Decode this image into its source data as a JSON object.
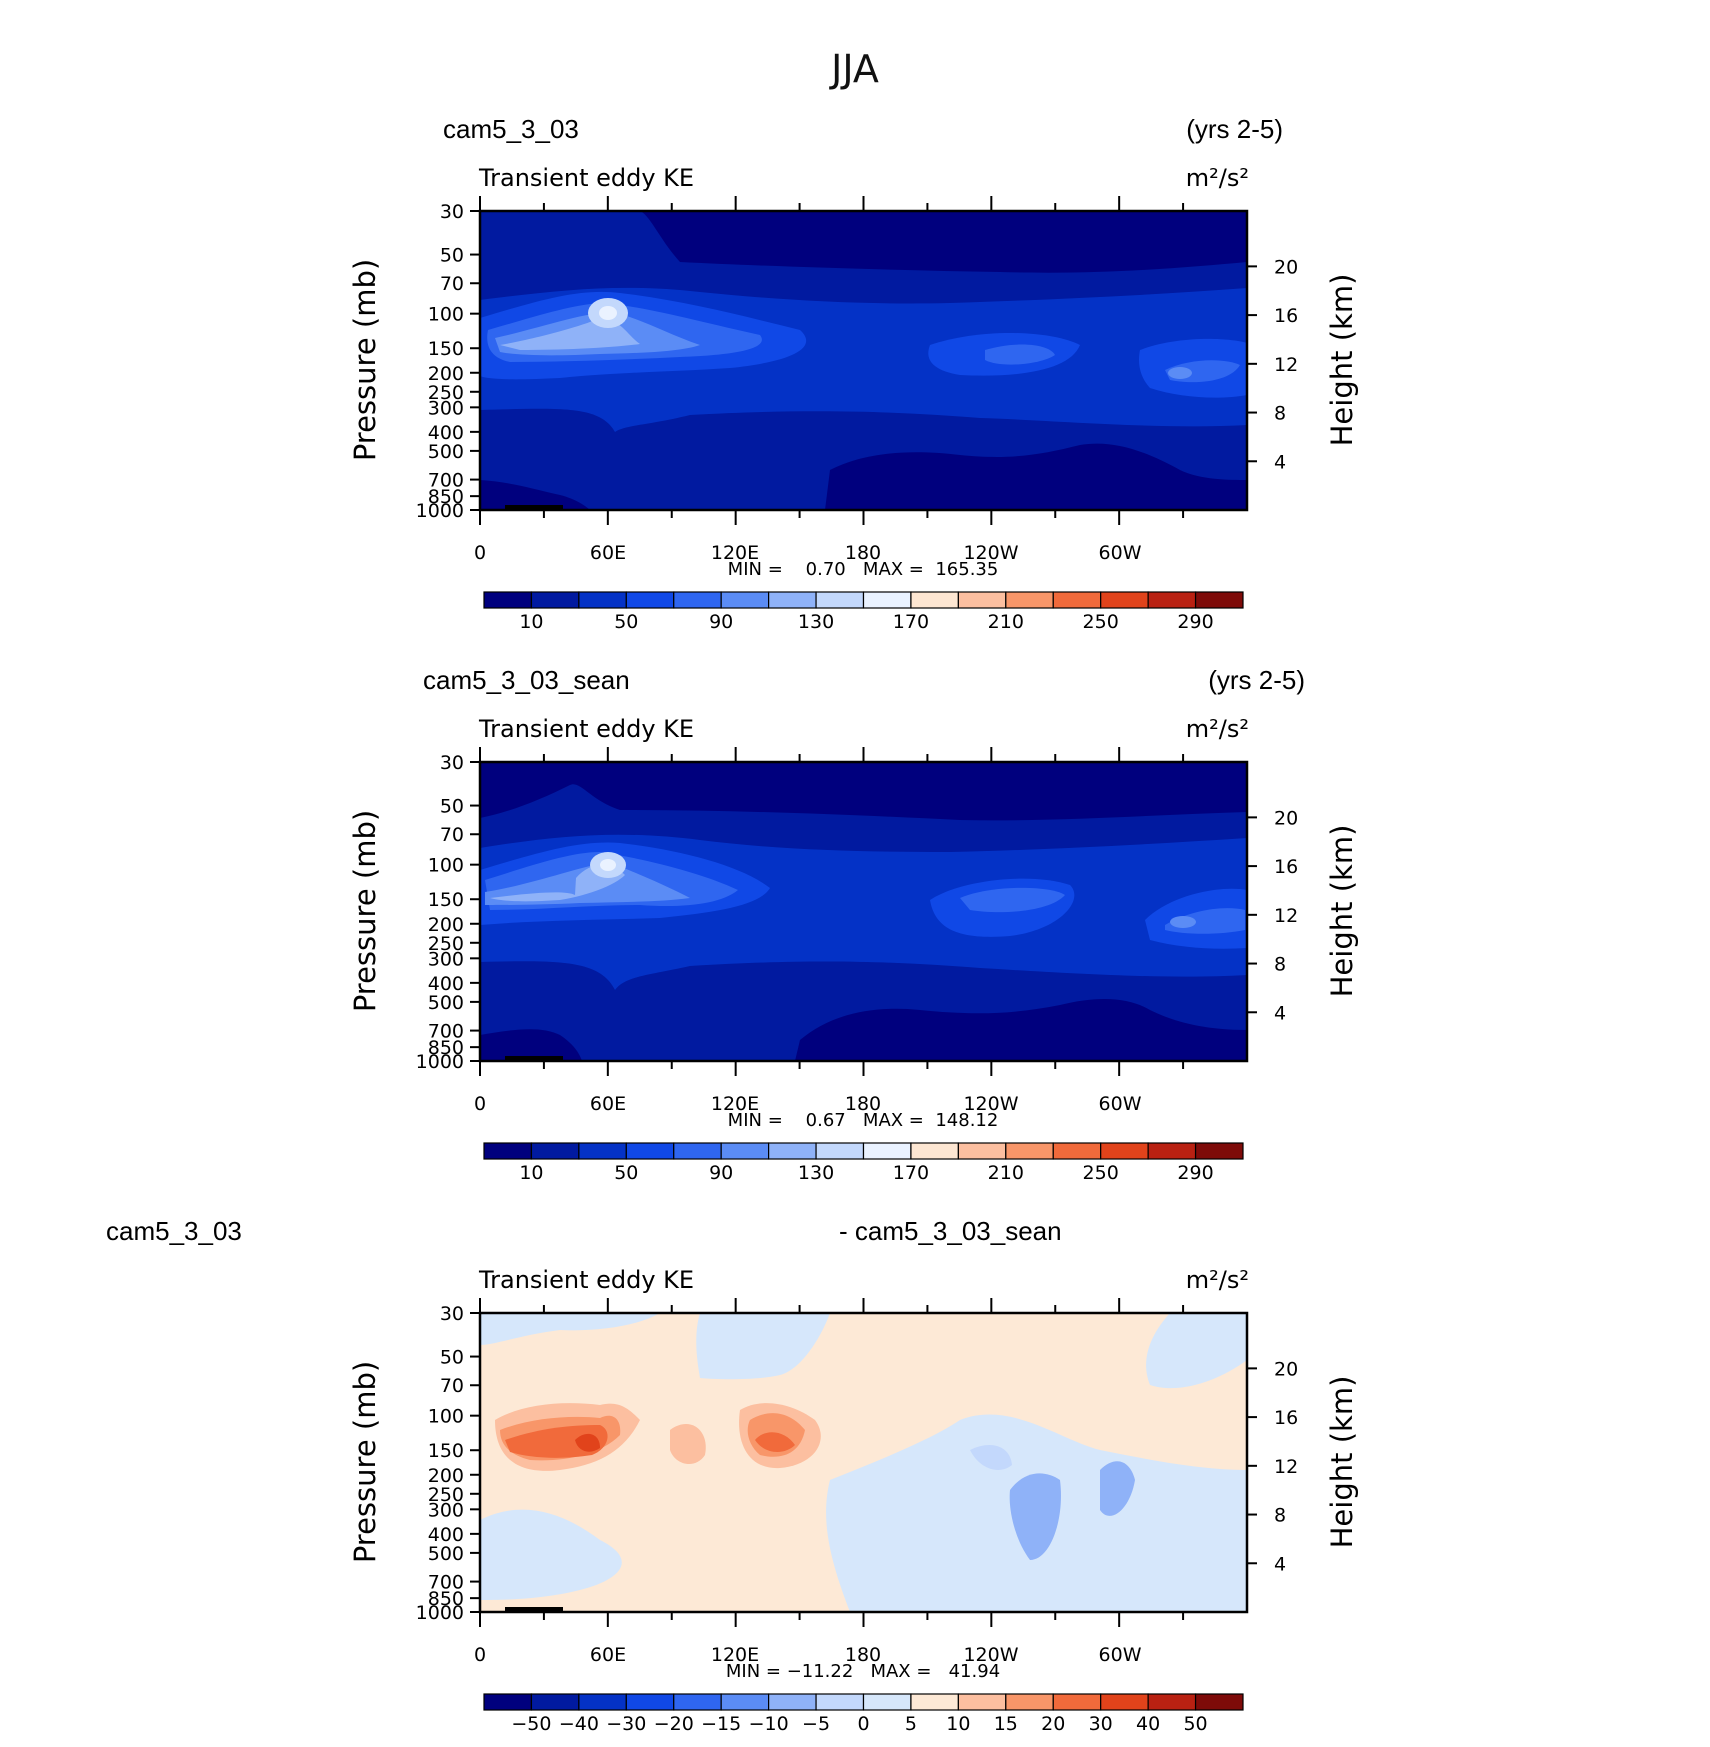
{
  "title": "JJA",
  "colors": {
    "abs_levels": [
      "#00007e",
      "#011aa0",
      "#0432c6",
      "#1048e6",
      "#2f66f0",
      "#5b8cf5",
      "#8fb2f8",
      "#c3d8fc",
      "#eaf2ff",
      "#fde6d2",
      "#fcbfa0",
      "#f89669",
      "#f16a3b",
      "#e1431b",
      "#b92112",
      "#7e0b09"
    ],
    "diff_levels": [
      "#00007e",
      "#011aa0",
      "#0432c6",
      "#1048e6",
      "#2f66f0",
      "#5b8cf5",
      "#8fb2f8",
      "#c3d8fc",
      "#d6e7fb",
      "#fde9d6",
      "#fcbfa0",
      "#f89669",
      "#f16a3b",
      "#e1431b",
      "#b92112",
      "#7e0b09"
    ]
  },
  "panels": [
    {
      "case_label": "cam5_3_03",
      "years_label": "(yrs 2-5)",
      "variable": "Transient eddy KE",
      "units": "m²/s²",
      "stats": "MIN =    0.70   MAX =  165.35",
      "colorbar_labels": [
        "10",
        "50",
        "90",
        "130",
        "170",
        "210",
        "250",
        "290"
      ]
    },
    {
      "case_label": "cam5_3_03_sean",
      "years_label": "(yrs 2-5)",
      "variable": "Transient eddy KE",
      "units": "m²/s²",
      "stats": "MIN =    0.67   MAX =  148.12",
      "colorbar_labels": [
        "10",
        "50",
        "90",
        "130",
        "170",
        "210",
        "250",
        "290"
      ]
    },
    {
      "case_label": "cam5_3_03",
      "years_label": "- cam5_3_03_sean",
      "variable": "Transient eddy KE",
      "units": "m²/s²",
      "stats": "MIN = −11.22   MAX =   41.94",
      "colorbar_labels": [
        "−50",
        "−40",
        "−30",
        "−20",
        "−15",
        "−10",
        "−5",
        "0",
        "5",
        "10",
        "15",
        "20",
        "30",
        "40",
        "50"
      ]
    }
  ],
  "chart_data": [
    {
      "type": "heatmap",
      "title": "Transient eddy KE",
      "units": "m²/s²",
      "xlabel": "",
      "ylabel": "Pressure (mb)",
      "ylabel_right": "Height (km)",
      "x_tick_labels": [
        "0",
        "60E",
        "120E",
        "180",
        "120W",
        "60W"
      ],
      "y_tick_labels": [
        "30",
        "50",
        "70",
        "100",
        "150",
        "200",
        "250",
        "300",
        "400",
        "500",
        "700",
        "850",
        "1000"
      ],
      "height_tick_labels": [
        "4",
        "8",
        "12",
        "16",
        "20"
      ],
      "ylim": [
        1000,
        30
      ],
      "min": 0.7,
      "max": 165.35,
      "contour_levels": [
        10,
        30,
        50,
        70,
        90,
        110,
        130,
        150,
        170,
        190,
        210,
        230,
        250,
        270,
        290
      ],
      "features": [
        {
          "lon": 60,
          "p": 100,
          "value": 165
        },
        {
          "lon": 20,
          "p": 150,
          "value": 130
        },
        {
          "lon": 100,
          "p": 150,
          "value": 110
        },
        {
          "lon": 255,
          "p": 180,
          "value": 90
        },
        {
          "lon": 340,
          "p": 190,
          "value": 100
        }
      ]
    },
    {
      "type": "heatmap",
      "title": "Transient eddy KE",
      "units": "m²/s²",
      "ylabel": "Pressure (mb)",
      "ylabel_right": "Height (km)",
      "x_tick_labels": [
        "0",
        "60E",
        "120E",
        "180",
        "120W",
        "60W"
      ],
      "y_tick_labels": [
        "30",
        "50",
        "70",
        "100",
        "150",
        "200",
        "250",
        "300",
        "400",
        "500",
        "700",
        "850",
        "1000"
      ],
      "height_tick_labels": [
        "4",
        "8",
        "12",
        "16",
        "20"
      ],
      "ylim": [
        1000,
        30
      ],
      "min": 0.67,
      "max": 148.12,
      "contour_levels": [
        10,
        30,
        50,
        70,
        90,
        110,
        130,
        150,
        170,
        190,
        210,
        230,
        250,
        270,
        290
      ],
      "features": [
        {
          "lon": 60,
          "p": 100,
          "value": 148
        },
        {
          "lon": 15,
          "p": 150,
          "value": 120
        },
        {
          "lon": 255,
          "p": 170,
          "value": 95
        },
        {
          "lon": 330,
          "p": 200,
          "value": 110
        }
      ]
    },
    {
      "type": "heatmap",
      "title": "Transient eddy KE",
      "units": "m²/s²",
      "ylabel": "Pressure (mb)",
      "ylabel_right": "Height (km)",
      "x_tick_labels": [
        "0",
        "60E",
        "120E",
        "180",
        "120W",
        "60W"
      ],
      "y_tick_labels": [
        "30",
        "50",
        "70",
        "100",
        "150",
        "200",
        "250",
        "300",
        "400",
        "500",
        "700",
        "850",
        "1000"
      ],
      "height_tick_labels": [
        "4",
        "8",
        "12",
        "16",
        "20"
      ],
      "ylim": [
        1000,
        30
      ],
      "min": -11.22,
      "max": 41.94,
      "contour_levels": [
        -50,
        -40,
        -30,
        -20,
        -15,
        -10,
        -5,
        0,
        5,
        10,
        15,
        20,
        30,
        40,
        50
      ],
      "features": [
        {
          "lon": 40,
          "p": 150,
          "value": 40
        },
        {
          "lon": 135,
          "p": 150,
          "value": 30
        },
        {
          "lon": 95,
          "p": 160,
          "value": 12
        },
        {
          "lon": 265,
          "p": 220,
          "value": -10
        },
        {
          "lon": 300,
          "p": 200,
          "value": -10
        }
      ]
    }
  ]
}
